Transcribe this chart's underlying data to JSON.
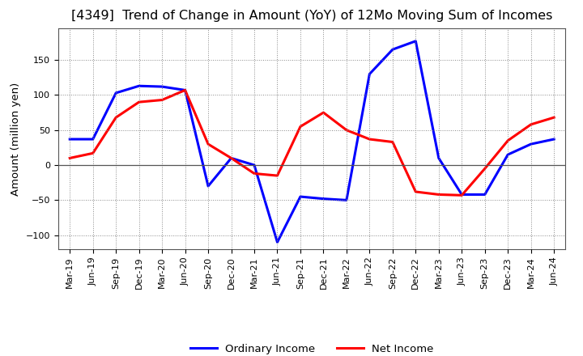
{
  "title": "[4349]  Trend of Change in Amount (YoY) of 12Mo Moving Sum of Incomes",
  "ylabel": "Amount (million yen)",
  "x_labels": [
    "Mar-19",
    "Jun-19",
    "Sep-19",
    "Dec-19",
    "Mar-20",
    "Jun-20",
    "Sep-20",
    "Dec-20",
    "Mar-21",
    "Jun-21",
    "Sep-21",
    "Dec-21",
    "Mar-22",
    "Jun-22",
    "Sep-22",
    "Dec-22",
    "Mar-23",
    "Jun-23",
    "Sep-23",
    "Dec-23",
    "Mar-24",
    "Jun-24"
  ],
  "ordinary_income": [
    37,
    37,
    103,
    113,
    112,
    107,
    -30,
    10,
    0,
    -110,
    -45,
    -48,
    -50,
    130,
    165,
    177,
    10,
    -42,
    -42,
    15,
    30,
    37
  ],
  "net_income": [
    10,
    17,
    68,
    90,
    93,
    107,
    30,
    10,
    -12,
    -15,
    55,
    75,
    50,
    37,
    33,
    -38,
    -42,
    -43,
    -5,
    35,
    58,
    68
  ],
  "ordinary_color": "#0000ff",
  "net_color": "#ff0000",
  "background_color": "#ffffff",
  "plot_bg_color": "#ffffff",
  "grid_color": "#888888",
  "ylim": [
    -120,
    195
  ],
  "yticks": [
    -100,
    -50,
    0,
    50,
    100,
    150
  ],
  "legend_labels": [
    "Ordinary Income",
    "Net Income"
  ],
  "line_width": 2.2,
  "title_fontsize": 11.5,
  "axis_fontsize": 9.5,
  "tick_fontsize": 8.0
}
